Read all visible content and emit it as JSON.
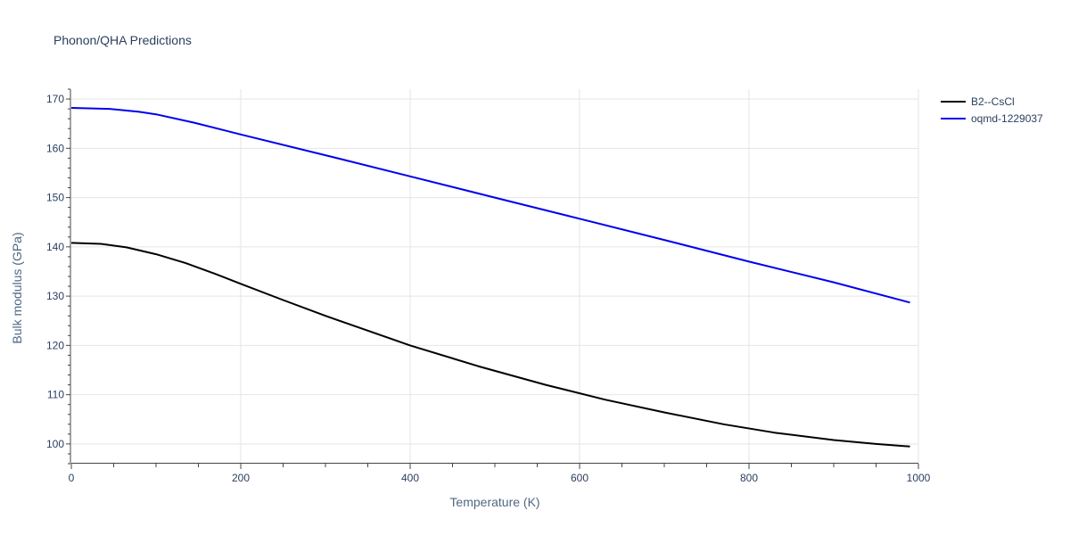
{
  "chart_data": {
    "type": "line",
    "title": "Phonon/QHA Predictions",
    "xlabel": "Temperature (K)",
    "ylabel": "Bulk modulus (GPa)",
    "xlim": [
      0,
      1000
    ],
    "ylim": [
      96,
      172
    ],
    "x_ticks": [
      0,
      200,
      400,
      600,
      800,
      1000
    ],
    "y_ticks": [
      100,
      110,
      120,
      130,
      140,
      150,
      160,
      170
    ],
    "grid": true,
    "legend_position": "top-right",
    "series": [
      {
        "name": "B2--CsCl",
        "color": "#000000",
        "x": [
          0,
          35,
          65,
          100,
          135,
          170,
          200,
          250,
          300,
          330,
          400,
          480,
          560,
          630,
          700,
          770,
          830,
          900,
          950,
          990
        ],
        "y": [
          140.8,
          140.6,
          139.9,
          138.5,
          136.7,
          134.5,
          132.5,
          129.2,
          126.0,
          124.2,
          120.0,
          115.8,
          112.0,
          109.0,
          106.4,
          104.0,
          102.3,
          100.8,
          100.0,
          99.5
        ]
      },
      {
        "name": "oqmd-1229037",
        "color": "#0000ee",
        "x": [
          0,
          45,
          80,
          100,
          145,
          200,
          300,
          400,
          500,
          600,
          700,
          800,
          900,
          990
        ],
        "y": [
          168.2,
          168.0,
          167.4,
          166.9,
          165.2,
          162.8,
          158.6,
          154.3,
          150.0,
          145.7,
          141.4,
          137.0,
          132.8,
          128.7
        ]
      }
    ]
  }
}
